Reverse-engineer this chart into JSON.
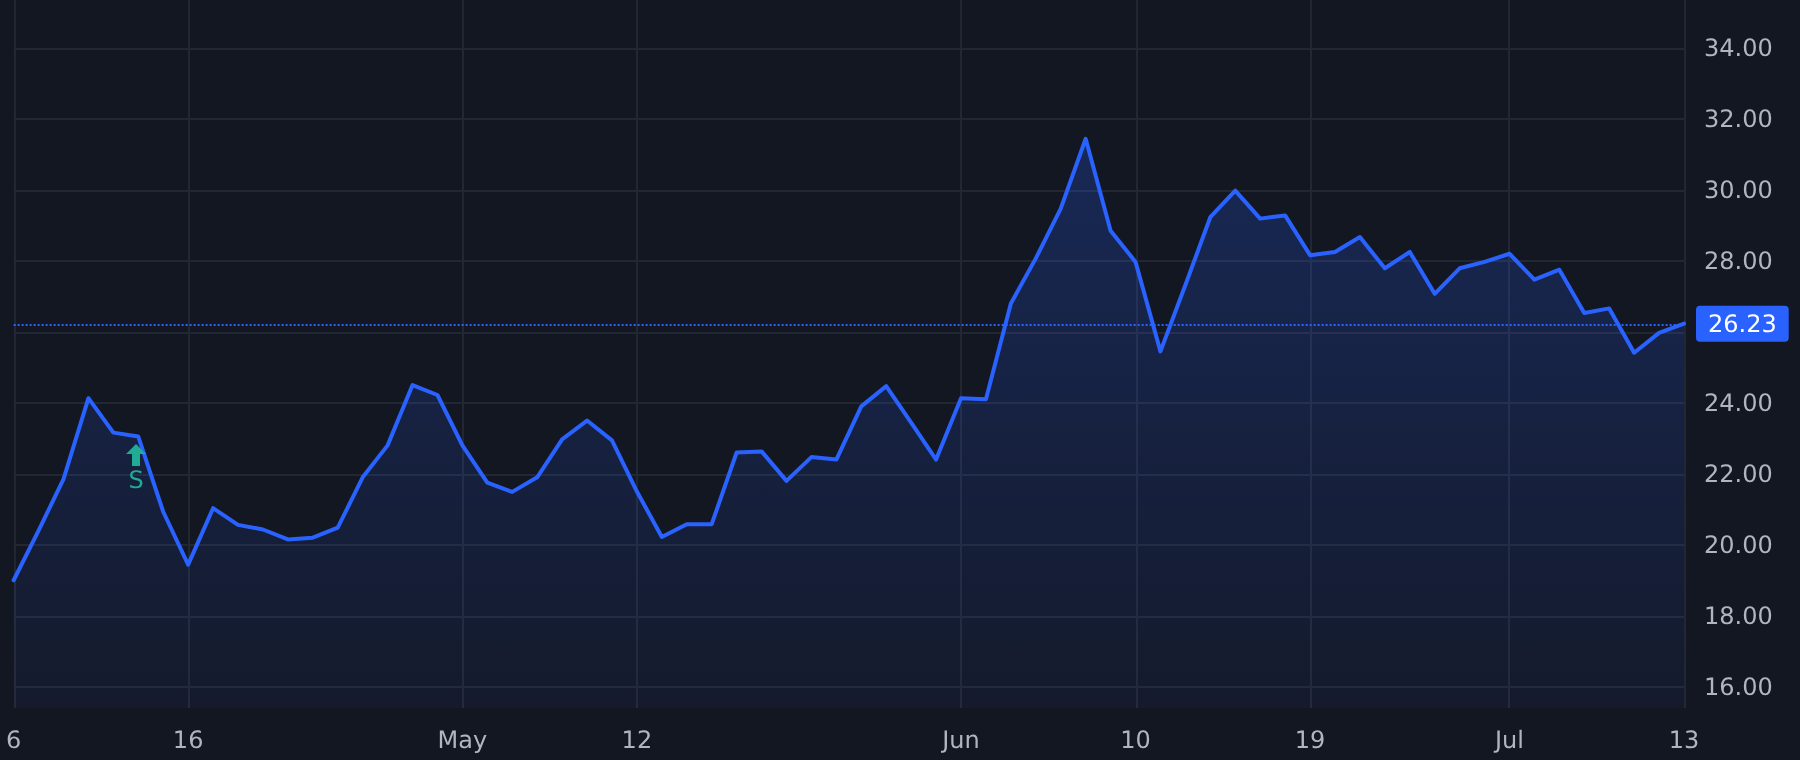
{
  "chart_data": {
    "type": "area",
    "categories": [
      "6",
      null,
      null,
      null,
      null,
      null,
      null,
      "16",
      null,
      null,
      null,
      null,
      null,
      null,
      null,
      null,
      null,
      null,
      "May",
      null,
      null,
      null,
      null,
      null,
      null,
      "12",
      null,
      null,
      null,
      null,
      null,
      null,
      null,
      null,
      null,
      null,
      null,
      null,
      "Jun",
      null,
      null,
      null,
      null,
      null,
      null,
      "10",
      null,
      null,
      null,
      null,
      null,
      null,
      "19",
      null,
      null,
      null,
      null,
      null,
      null,
      null,
      "Jul",
      null,
      null,
      null,
      null,
      null,
      null,
      "13"
    ],
    "series": [
      {
        "color": "#2962ff",
        "values": [
          19.0,
          20.4,
          21.85,
          24.13,
          23.16,
          23.05,
          20.93,
          19.44,
          21.03,
          20.56,
          20.43,
          20.15,
          20.2,
          20.48,
          21.9,
          22.8,
          24.5,
          24.22,
          22.8,
          21.75,
          21.49,
          21.9,
          22.97,
          23.5,
          22.94,
          21.5,
          20.22,
          20.58,
          20.58,
          22.6,
          22.63,
          21.8,
          22.47,
          22.4,
          23.9,
          24.47,
          23.44,
          22.4,
          24.13,
          24.1,
          26.8,
          28.07,
          29.47,
          31.44,
          28.85,
          27.97,
          25.45,
          27.32,
          29.23,
          29.98,
          29.19,
          29.28,
          28.16,
          28.25,
          28.67,
          27.79,
          28.25,
          27.07,
          27.79,
          27.97,
          28.2,
          27.47,
          27.75,
          26.53,
          26.66,
          25.41,
          25.97,
          26.23
        ]
      }
    ],
    "ylim": [
      15.4,
      35.35
    ],
    "yticks": [
      {
        "value": 16,
        "label": "16.00"
      },
      {
        "value": 18,
        "label": "18.00"
      },
      {
        "value": 20,
        "label": "20.00"
      },
      {
        "value": 22,
        "label": "22.00"
      },
      {
        "value": 24,
        "label": "24.00"
      },
      {
        "value": 26,
        "label": null
      },
      {
        "value": 28,
        "label": "28.00"
      },
      {
        "value": 30,
        "label": "30.00"
      },
      {
        "value": 32,
        "label": "32.00"
      },
      {
        "value": 34,
        "label": "34.00"
      }
    ],
    "ref_lines": [
      {
        "axis": "y",
        "value": 26.23,
        "label": "26.23",
        "color": "#2962ff",
        "line_style": "dotted"
      }
    ],
    "annotations": [
      "S"
    ],
    "grid": true,
    "marker": "none",
    "line_style": "solid"
  }
}
